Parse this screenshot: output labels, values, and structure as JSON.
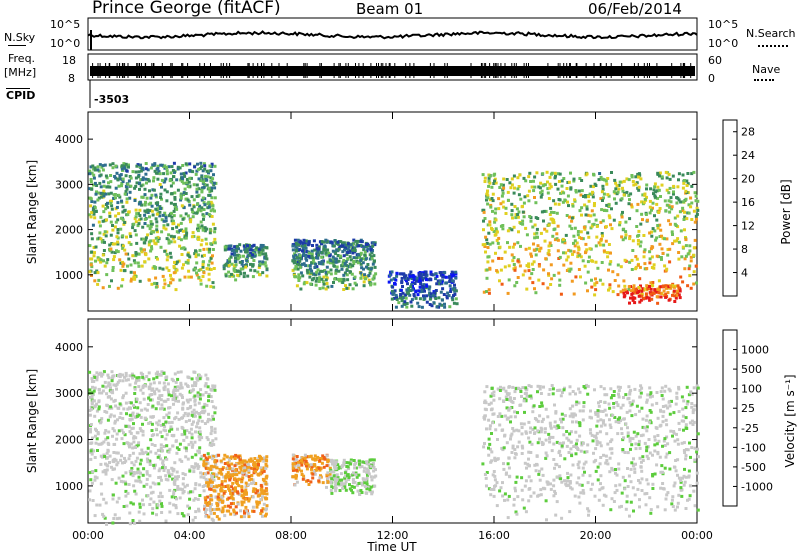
{
  "header": {
    "station": "Prince George (fitACF)",
    "beam": "Beam 01",
    "date": "06/Feb/2014"
  },
  "top_strip": {
    "nsky_label": "N.Sky",
    "nsky_ticks": [
      "10^5",
      "10^0"
    ],
    "nsearch_label": "N.Search",
    "nsearch_ticks": [
      "10^5",
      "10^0"
    ],
    "freq_label_line1": "Freq.",
    "freq_label_line2": "[MHz]",
    "freq_ticks": [
      "18",
      "8"
    ],
    "nave_label": "Nave",
    "nave_ticks": [
      "60",
      "0"
    ],
    "cpid_label": "CPID",
    "cpid_value": "-3503"
  },
  "colors": {
    "power_scale": [
      "#0a14f5",
      "#1d3aa8",
      "#2e6e8e",
      "#3a8a5a",
      "#6fc05a",
      "#e0d020",
      "#f29a20",
      "#f05a14",
      "#e61818"
    ],
    "velocity_scale": [
      "#2444b8",
      "#2f74a8",
      "#3c8a5a",
      "#5ccc3c",
      "#c8c8c8",
      "#c8c8c8",
      "#f0a020",
      "#f06018",
      "#e21a1a"
    ]
  },
  "chart_data": [
    {
      "type": "heatmap",
      "title": "Power",
      "ylabel": "Slant Range [km]",
      "yticks": [
        "1000",
        "2000",
        "3000",
        "4000"
      ],
      "ylim": [
        200,
        4600
      ],
      "colorbar_label": "Power [dB]",
      "colorbar_ticks": [
        "4",
        "8",
        "12",
        "16",
        "20",
        "24",
        "28"
      ],
      "colorbar_range": [
        0,
        30
      ],
      "echo_regions": [
        {
          "t_start": 0.0,
          "t_end": 5.0,
          "range_min": 700,
          "range_max": 3500,
          "power": 14
        },
        {
          "t_start": 5.3,
          "t_end": 7.0,
          "range_min": 900,
          "range_max": 1700,
          "power": 12
        },
        {
          "t_start": 8.0,
          "t_end": 11.3,
          "range_min": 700,
          "range_max": 1800,
          "power": 11
        },
        {
          "t_start": 11.8,
          "t_end": 14.5,
          "range_min": 300,
          "range_max": 1100,
          "power": 6
        },
        {
          "t_start": 15.5,
          "t_end": 24.0,
          "range_min": 500,
          "range_max": 3300,
          "power": 18
        },
        {
          "t_start": 21.0,
          "t_end": 23.3,
          "range_min": 400,
          "range_max": 800,
          "power": 28
        }
      ]
    },
    {
      "type": "heatmap",
      "title": "Velocity",
      "ylabel": "Slant Range [km]",
      "yticks": [
        "1000",
        "2000",
        "3000",
        "4000"
      ],
      "ylim": [
        200,
        4600
      ],
      "colorbar_label": "Velocity [m s⁻¹]",
      "colorbar_ticks": [
        "1000",
        "500",
        "100",
        "25",
        "-25",
        "-100",
        "-500",
        "-1000"
      ],
      "colorbar_range": [
        -1000,
        1000
      ],
      "xlabel": "Time UT",
      "xticks": [
        "00:00",
        "04:00",
        "08:00",
        "12:00",
        "16:00",
        "20:00",
        "00:00"
      ],
      "xlim": [
        0,
        24
      ],
      "echo_regions": [
        {
          "t_start": 0.0,
          "t_end": 5.0,
          "range_min": 200,
          "range_max": 3500,
          "velocity": 0
        },
        {
          "t_start": 4.5,
          "t_end": 7.0,
          "range_min": 300,
          "range_max": 1700,
          "velocity": -500
        },
        {
          "t_start": 8.0,
          "t_end": 9.5,
          "range_min": 1000,
          "range_max": 1700,
          "velocity": -500
        },
        {
          "t_start": 9.5,
          "t_end": 11.3,
          "range_min": 800,
          "range_max": 1600,
          "velocity": 100
        },
        {
          "t_start": 15.5,
          "t_end": 24.0,
          "range_min": 300,
          "range_max": 3200,
          "velocity": 0
        }
      ]
    }
  ]
}
